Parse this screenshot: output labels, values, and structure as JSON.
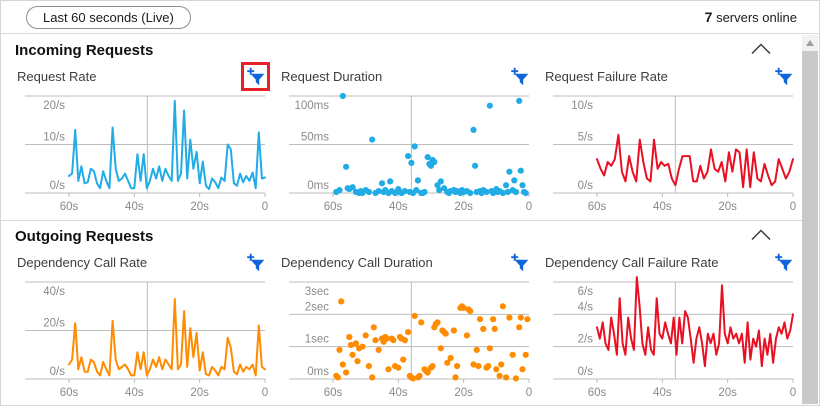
{
  "topbar": {
    "time_range_label": "Last 60 seconds (Live)",
    "servers_count": "7",
    "servers_label": " servers online"
  },
  "sections": [
    {
      "title": "Incoming Requests"
    },
    {
      "title": "Outgoing Requests"
    }
  ],
  "icons": {
    "filter": "add-filter-funnel-icon",
    "collapse": "chevron-up-icon",
    "scroll_up": "scrollbar-up-arrow"
  },
  "colors": {
    "blue_series": "#22ace5",
    "orange_series": "#ff8c00",
    "red_series": "#e81123",
    "filter_icon": "#1065d8",
    "highlight_box": "#e8202c",
    "grid_line": "#bdbdbd",
    "axis_text": "#8a8a8a"
  },
  "chart_data": [
    {
      "type": "line",
      "title": "Request Rate",
      "color": "#22ace5",
      "x_range_seconds": [
        60,
        0
      ],
      "x_ticks": [
        "60s",
        "40s",
        "20s",
        "0"
      ],
      "y_ticks": [
        {
          "v": 20,
          "label": "20/s"
        },
        {
          "v": 10,
          "label": "10/s"
        },
        {
          "v": 0,
          "label": "0/s"
        }
      ],
      "ymax": 20,
      "vertical_gridline_seconds_ago": 36,
      "values": [
        3.5,
        4,
        13,
        2.5,
        5.5,
        2,
        2.2,
        5,
        4.5,
        2,
        1,
        4.5,
        2.5,
        1,
        13.5,
        5,
        2.5,
        3,
        4,
        2.5,
        1,
        1,
        8,
        2.5,
        8,
        1,
        2.5,
        5,
        3,
        5.5,
        2.5,
        5,
        3.5,
        2.5,
        19,
        2.5,
        4,
        17,
        3,
        11,
        5,
        8.5,
        2,
        6.5,
        1.5,
        0.8,
        3,
        2.2,
        1,
        3.2,
        2.5,
        10,
        9,
        2,
        1.5,
        4,
        2.2,
        3.5,
        2.5,
        4.2,
        1,
        12.5,
        3,
        3.2
      ]
    },
    {
      "type": "scatter",
      "title": "Request Duration",
      "color": "#22ace5",
      "x_range_seconds": [
        60,
        0
      ],
      "x_ticks": [
        "60s",
        "40s",
        "20s",
        "0"
      ],
      "y_ticks": [
        {
          "v": 100,
          "label": "100ms"
        },
        {
          "v": 50,
          "label": "50ms"
        },
        {
          "v": 0,
          "label": "0ms"
        }
      ],
      "ymax": 100,
      "vertical_gridline_seconds_ago": 36,
      "points": [
        [
          59,
          1
        ],
        [
          58,
          3
        ],
        [
          57,
          100
        ],
        [
          56,
          27
        ],
        [
          55.5,
          5
        ],
        [
          55,
          4
        ],
        [
          54,
          6
        ],
        [
          53,
          1
        ],
        [
          52,
          0
        ],
        [
          51.5,
          2
        ],
        [
          51,
          0
        ],
        [
          50,
          3
        ],
        [
          49,
          1
        ],
        [
          48,
          55
        ],
        [
          47,
          0
        ],
        [
          46,
          2
        ],
        [
          45,
          10
        ],
        [
          44.5,
          1
        ],
        [
          44,
          3
        ],
        [
          43,
          0
        ],
        [
          42.5,
          12
        ],
        [
          42,
          2
        ],
        [
          41,
          0
        ],
        [
          40,
          4
        ],
        [
          39.5,
          1
        ],
        [
          39,
          0
        ],
        [
          38,
          2
        ],
        [
          37,
          38
        ],
        [
          36.5,
          1
        ],
        [
          36,
          31
        ],
        [
          35.5,
          0
        ],
        [
          35,
          48
        ],
        [
          34.5,
          3
        ],
        [
          34,
          13
        ],
        [
          33,
          0
        ],
        [
          32.5,
          0
        ],
        [
          32,
          1
        ],
        [
          31,
          37
        ],
        [
          30.5,
          30
        ],
        [
          30,
          28
        ],
        [
          29.5,
          34
        ],
        [
          29,
          32
        ],
        [
          28,
          8
        ],
        [
          27.5,
          3
        ],
        [
          27,
          12
        ],
        [
          26,
          5
        ],
        [
          25,
          1
        ],
        [
          24.5,
          0
        ],
        [
          24,
          2
        ],
        [
          23,
          3
        ],
        [
          22.5,
          1
        ],
        [
          22,
          2
        ],
        [
          21,
          0
        ],
        [
          20.5,
          3
        ],
        [
          20,
          1
        ],
        [
          19,
          2
        ],
        [
          18,
          0
        ],
        [
          17,
          65
        ],
        [
          16.5,
          28
        ],
        [
          16,
          1
        ],
        [
          15,
          2
        ],
        [
          14.5,
          0
        ],
        [
          14,
          3
        ],
        [
          13,
          1
        ],
        [
          12,
          90
        ],
        [
          11.5,
          2
        ],
        [
          11,
          0
        ],
        [
          10,
          4
        ],
        [
          9.5,
          1
        ],
        [
          9,
          2
        ],
        [
          8,
          0
        ],
        [
          7,
          8
        ],
        [
          6.5,
          1
        ],
        [
          6,
          22
        ],
        [
          5,
          3
        ],
        [
          4.5,
          13
        ],
        [
          4,
          1
        ],
        [
          3,
          95
        ],
        [
          2.5,
          23
        ],
        [
          2,
          8
        ],
        [
          1.5,
          1
        ],
        [
          1,
          0
        ]
      ]
    },
    {
      "type": "line",
      "title": "Request Failure Rate",
      "color": "#e81123",
      "x_range_seconds": [
        60,
        0
      ],
      "x_ticks": [
        "60s",
        "40s",
        "20s",
        "0"
      ],
      "y_ticks": [
        {
          "v": 10,
          "label": "10/s"
        },
        {
          "v": 5,
          "label": "5/s"
        },
        {
          "v": 0,
          "label": "0/s"
        }
      ],
      "ymax": 10,
      "vertical_gridline_seconds_ago": 36,
      "values": [
        3.5,
        2.5,
        1.8,
        3.2,
        2.8,
        3.5,
        6,
        2.2,
        1.2,
        3.8,
        2.2,
        1.2,
        5.5,
        3.2,
        1.5,
        1.2,
        5.5,
        2.5,
        3.2,
        2.8,
        3,
        1.5,
        0.8,
        2.5,
        3.8,
        3.8,
        3.8,
        1.2,
        1.2,
        2.8,
        1.5,
        2.2,
        4.5,
        2.5,
        2.2,
        3.2,
        1.2,
        4.2,
        2.2,
        4.5,
        4.2,
        0.6,
        4.5,
        0.6,
        4.2,
        1.5,
        1.2,
        3,
        1.8,
        0.8,
        1.2,
        3.5,
        2.5,
        1.5,
        2.2,
        3.5
      ]
    },
    {
      "type": "line",
      "title": "Dependency Call Rate",
      "color": "#ff8c00",
      "x_range_seconds": [
        60,
        0
      ],
      "x_ticks": [
        "60s",
        "40s",
        "20s",
        "0"
      ],
      "y_ticks": [
        {
          "v": 40,
          "label": "40/s"
        },
        {
          "v": 20,
          "label": "20/s"
        },
        {
          "v": 0,
          "label": "0/s"
        }
      ],
      "ymax": 40,
      "vertical_gridline_seconds_ago": 36,
      "values": [
        6,
        8,
        23,
        4,
        9,
        3,
        3,
        8,
        7,
        3,
        1.5,
        7,
        4,
        1.5,
        24,
        8,
        4,
        5,
        6,
        4,
        1.5,
        1.5,
        11,
        4,
        11,
        1.5,
        4,
        8,
        5,
        9,
        4,
        8,
        6,
        4,
        33,
        4,
        6,
        28,
        5,
        21,
        9,
        19,
        3.5,
        11,
        2,
        1.5,
        5,
        3.5,
        1.5,
        5,
        4,
        17,
        13,
        3,
        2,
        6,
        3,
        5,
        4,
        6,
        1.5,
        22,
        5,
        4
      ]
    },
    {
      "type": "scatter",
      "title": "Dependency Call Duration",
      "color": "#ff8c00",
      "x_range_seconds": [
        60,
        0
      ],
      "x_ticks": [
        "60s",
        "40s",
        "20s",
        "0"
      ],
      "y_ticks": [
        {
          "v": 3,
          "label": "3sec"
        },
        {
          "v": 2,
          "label": "2sec"
        },
        {
          "v": 1,
          "label": "1sec"
        },
        {
          "v": 0,
          "label": "0ms"
        }
      ],
      "ymax": 3,
      "vertical_gridline_seconds_ago": 36,
      "points": [
        [
          59,
          0.1
        ],
        [
          58.5,
          0.05
        ],
        [
          58,
          0.9
        ],
        [
          57.5,
          2.4
        ],
        [
          57,
          0.45
        ],
        [
          56,
          0.2
        ],
        [
          55,
          1.3
        ],
        [
          54.5,
          1.05
        ],
        [
          54,
          0.75
        ],
        [
          53,
          1.1
        ],
        [
          52.5,
          0.55
        ],
        [
          52,
          0.95
        ],
        [
          51,
          1.0
        ],
        [
          50,
          1.35
        ],
        [
          49,
          0.4
        ],
        [
          48,
          0.05
        ],
        [
          47.5,
          1.6
        ],
        [
          47,
          1.2
        ],
        [
          46,
          0.9
        ],
        [
          45,
          1.25
        ],
        [
          44.5,
          1.15
        ],
        [
          44,
          1.3
        ],
        [
          43.5,
          1.25
        ],
        [
          43,
          0.3
        ],
        [
          42,
          1.25
        ],
        [
          41.5,
          1.2
        ],
        [
          41,
          0.4
        ],
        [
          40,
          0.35
        ],
        [
          39.5,
          1.3
        ],
        [
          39,
          1.25
        ],
        [
          38.5,
          0.6
        ],
        [
          38,
          1.2
        ],
        [
          37,
          1.45
        ],
        [
          36.5,
          0.1
        ],
        [
          36,
          0.05
        ],
        [
          35.5,
          0.02
        ],
        [
          35,
          1.95
        ],
        [
          34,
          0.05
        ],
        [
          33.5,
          0.1
        ],
        [
          33,
          1.75
        ],
        [
          32,
          0.3
        ],
        [
          31.5,
          0.25
        ],
        [
          31,
          0.2
        ],
        [
          30,
          0.35
        ],
        [
          29.5,
          0.4
        ],
        [
          29,
          1.6
        ],
        [
          28.5,
          1.7
        ],
        [
          28,
          1.75
        ],
        [
          27,
          0.95
        ],
        [
          26.5,
          1.5
        ],
        [
          26,
          1.45
        ],
        [
          25.5,
          1.4
        ],
        [
          25,
          0.5
        ],
        [
          24,
          0.65
        ],
        [
          23,
          1.5
        ],
        [
          22.5,
          0.05
        ],
        [
          22,
          0.4
        ],
        [
          21,
          2.2
        ],
        [
          20.5,
          2.25
        ],
        [
          20,
          2.2
        ],
        [
          19,
          1.35
        ],
        [
          18.5,
          2.15
        ],
        [
          18,
          2.1
        ],
        [
          17,
          0.45
        ],
        [
          16,
          0.9
        ],
        [
          15.5,
          0.4
        ],
        [
          15,
          1.85
        ],
        [
          14,
          1.55
        ],
        [
          13,
          0.35
        ],
        [
          12.5,
          0.4
        ],
        [
          12,
          0.95
        ],
        [
          11,
          1.85
        ],
        [
          10.5,
          1.55
        ],
        [
          10,
          0.3
        ],
        [
          9,
          0.1
        ],
        [
          8.5,
          0.45
        ],
        [
          8,
          2.25
        ],
        [
          7,
          0.05
        ],
        [
          6,
          1.9
        ],
        [
          5,
          0.75
        ],
        [
          4,
          0.02
        ],
        [
          3,
          1.6
        ],
        [
          2.5,
          1.9
        ],
        [
          2,
          0.3
        ],
        [
          1,
          0.75
        ],
        [
          0.5,
          1.85
        ]
      ]
    },
    {
      "type": "line",
      "title": "Dependency Call Failure Rate",
      "color": "#e81123",
      "x_range_seconds": [
        60,
        0
      ],
      "x_ticks": [
        "60s",
        "40s",
        "20s",
        "0"
      ],
      "y_ticks": [
        {
          "v": 6,
          "label": "6/s"
        },
        {
          "v": 4,
          "label": "4/s"
        },
        {
          "v": 2,
          "label": "2/s"
        },
        {
          "v": 0,
          "label": "0/s"
        }
      ],
      "ymax": 6,
      "vertical_gridline_seconds_ago": 36,
      "values": [
        3.2,
        2.5,
        3.5,
        2.2,
        1.8,
        3.8,
        2.8,
        1.5,
        5,
        2.2,
        1.5,
        3.8,
        2.5,
        1.8,
        6.3,
        4.5,
        2.2,
        1.5,
        3.2,
        1.8,
        1.5,
        5,
        2.8,
        2.5,
        3.5,
        2.8,
        2.2,
        3.8,
        1.5,
        3.8,
        2.2,
        4.2,
        3.8,
        2.5,
        1,
        2.5,
        3.2,
        2.2,
        0.8,
        2.8,
        2.2,
        2.8,
        1.5,
        2.2,
        5.8,
        2.8,
        2.2,
        3.2,
        2.5,
        2.8,
        2.2,
        2.8,
        1,
        3.5,
        1.2,
        2.5,
        2,
        3,
        0.8,
        2.5,
        1.5,
        2.8,
        1,
        2.5,
        3.2,
        2.8,
        3.5,
        2.5,
        3,
        4
      ]
    }
  ]
}
